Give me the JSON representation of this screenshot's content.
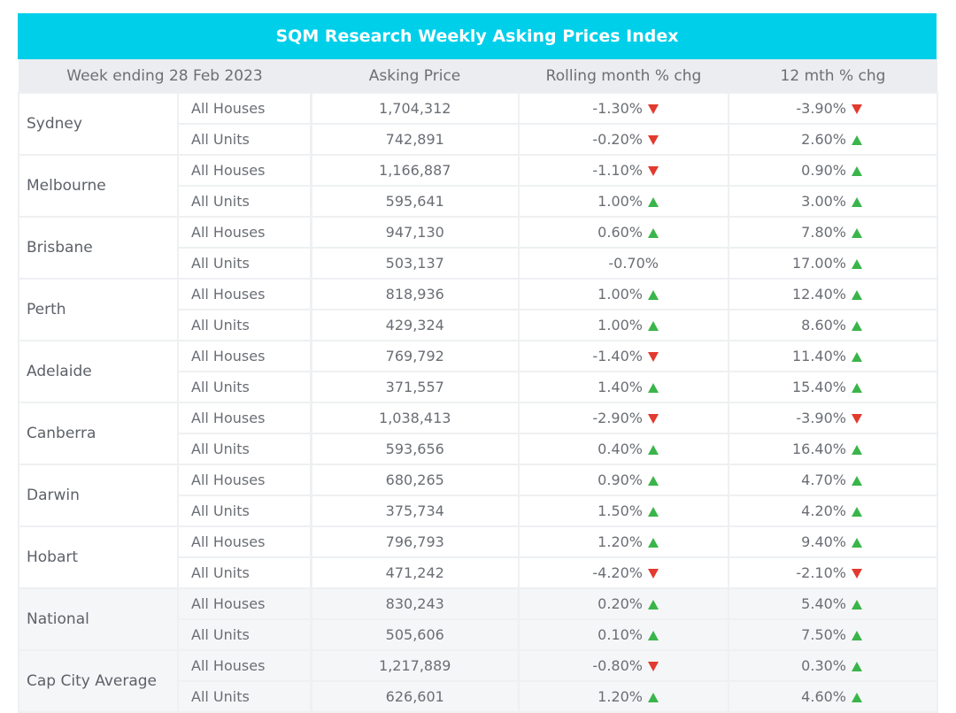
{
  "title": "SQM Research Weekly Asking Prices Index",
  "headers": {
    "week": "Week ending 28 Feb 2023",
    "price": "Asking Price",
    "month": "Rolling month % chg",
    "year": "12 mth % chg"
  },
  "colors": {
    "header_bar": "#00cfea",
    "up": "#3ab54a",
    "down": "#e23a2e"
  },
  "regions": [
    {
      "name": "Sydney",
      "rows": [
        {
          "type": "All Houses",
          "price": "1,704,312",
          "month": "-1.30%",
          "month_dir": "down",
          "year": "-3.90%",
          "year_dir": "down"
        },
        {
          "type": "All Units",
          "price": "742,891",
          "month": "-0.20%",
          "month_dir": "down",
          "year": "2.60%",
          "year_dir": "up"
        }
      ]
    },
    {
      "name": "Melbourne",
      "rows": [
        {
          "type": "All Houses",
          "price": "1,166,887",
          "month": "-1.10%",
          "month_dir": "down",
          "year": "0.90%",
          "year_dir": "up"
        },
        {
          "type": "All Units",
          "price": "595,641",
          "month": "1.00%",
          "month_dir": "up",
          "year": "3.00%",
          "year_dir": "up"
        }
      ]
    },
    {
      "name": "Brisbane",
      "rows": [
        {
          "type": "All Houses",
          "price": "947,130",
          "month": "0.60%",
          "month_dir": "up",
          "year": "7.80%",
          "year_dir": "up"
        },
        {
          "type": "All Units",
          "price": "503,137",
          "month": "-0.70%",
          "month_dir": "none",
          "year": "17.00%",
          "year_dir": "up"
        }
      ]
    },
    {
      "name": "Perth",
      "rows": [
        {
          "type": "All Houses",
          "price": "818,936",
          "month": "1.00%",
          "month_dir": "up",
          "year": "12.40%",
          "year_dir": "up"
        },
        {
          "type": "All Units",
          "price": "429,324",
          "month": "1.00%",
          "month_dir": "up",
          "year": "8.60%",
          "year_dir": "up"
        }
      ]
    },
    {
      "name": "Adelaide",
      "rows": [
        {
          "type": "All Houses",
          "price": "769,792",
          "month": "-1.40%",
          "month_dir": "down",
          "year": "11.40%",
          "year_dir": "up"
        },
        {
          "type": "All Units",
          "price": "371,557",
          "month": "1.40%",
          "month_dir": "up",
          "year": "15.40%",
          "year_dir": "up"
        }
      ]
    },
    {
      "name": "Canberra",
      "rows": [
        {
          "type": "All Houses",
          "price": "1,038,413",
          "month": "-2.90%",
          "month_dir": "down",
          "year": "-3.90%",
          "year_dir": "down"
        },
        {
          "type": "All Units",
          "price": "593,656",
          "month": "0.40%",
          "month_dir": "up",
          "year": "16.40%",
          "year_dir": "up"
        }
      ]
    },
    {
      "name": "Darwin",
      "rows": [
        {
          "type": "All Houses",
          "price": "680,265",
          "month": "0.90%",
          "month_dir": "up",
          "year": "4.70%",
          "year_dir": "up"
        },
        {
          "type": "All Units",
          "price": "375,734",
          "month": "1.50%",
          "month_dir": "up",
          "year": "4.20%",
          "year_dir": "up"
        }
      ]
    },
    {
      "name": "Hobart",
      "rows": [
        {
          "type": "All Houses",
          "price": "796,793",
          "month": "1.20%",
          "month_dir": "up",
          "year": "9.40%",
          "year_dir": "up"
        },
        {
          "type": "All Units",
          "price": "471,242",
          "month": "-4.20%",
          "month_dir": "down",
          "year": "-2.10%",
          "year_dir": "down"
        }
      ]
    },
    {
      "name": "National",
      "shaded": true,
      "rows": [
        {
          "type": "All Houses",
          "price": "830,243",
          "month": "0.20%",
          "month_dir": "up",
          "year": "5.40%",
          "year_dir": "up"
        },
        {
          "type": "All Units",
          "price": "505,606",
          "month": "0.10%",
          "month_dir": "up",
          "year": "7.50%",
          "year_dir": "up"
        }
      ]
    },
    {
      "name": "Cap City Average",
      "shaded": true,
      "rows": [
        {
          "type": "All Houses",
          "price": "1,217,889",
          "month": "-0.80%",
          "month_dir": "down",
          "year": "0.30%",
          "year_dir": "up"
        },
        {
          "type": "All Units",
          "price": "626,601",
          "month": "1.20%",
          "month_dir": "up",
          "year": "4.60%",
          "year_dir": "up"
        }
      ]
    }
  ]
}
